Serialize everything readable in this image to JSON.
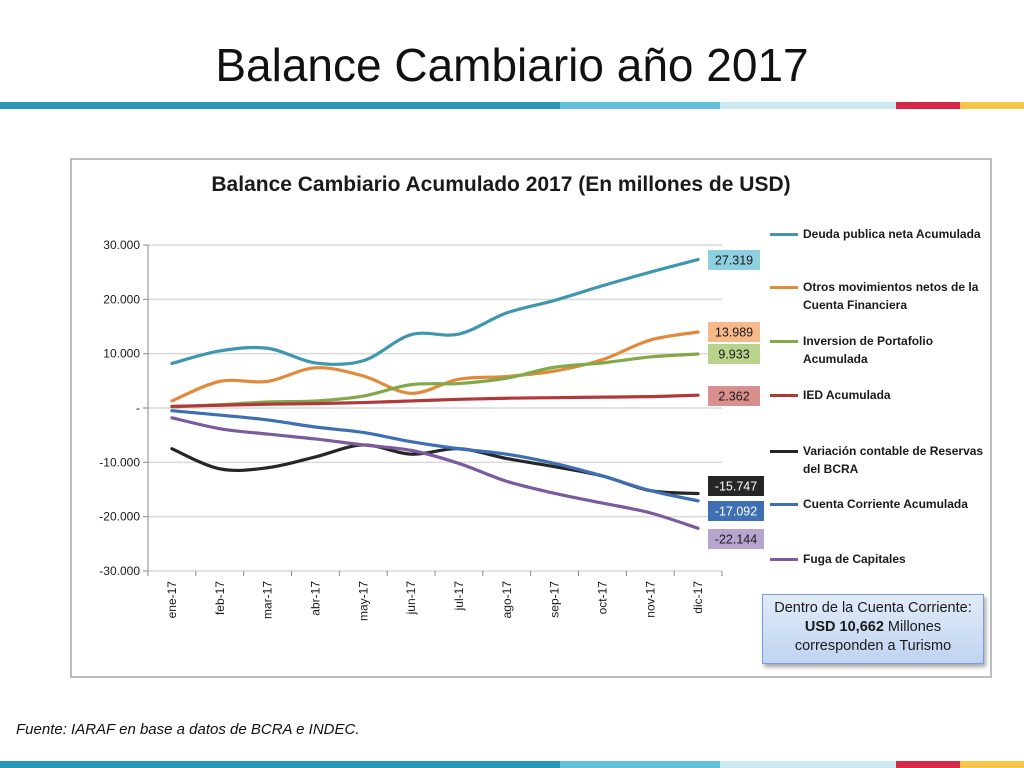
{
  "slide": {
    "title": "Balance Cambiario año 2017",
    "source": "Fuente: IARAF en base a datos de BCRA e INDEC."
  },
  "note": {
    "line1": "Dentro de la Cuenta Corriente:",
    "amount": "USD 10,662",
    "line2_rest": " Millones",
    "line3": "corresponden a Turismo"
  },
  "theme": {
    "bar_segments": [
      "#2a96b8",
      "#62c0da",
      "#cce9f2",
      "#d8284a",
      "#f7c548"
    ]
  },
  "chart_data": {
    "type": "line",
    "title": "Balance Cambiario Acumulado 2017 (En millones de USD)",
    "xlabel": "",
    "ylabel": "",
    "categories": [
      "ene-17",
      "feb-17",
      "mar-17",
      "abr-17",
      "may-17",
      "jun-17",
      "jul-17",
      "ago-17",
      "sep-17",
      "oct-17",
      "nov-17",
      "dic-17"
    ],
    "ylim": [
      -30000,
      30000
    ],
    "yticks": [
      30000,
      20000,
      10000,
      0,
      -10000,
      -20000,
      -30000
    ],
    "ytick_labels": [
      "30.000",
      "20.000",
      "10.000",
      "-",
      "-10.000",
      "-20.000",
      "-30.000"
    ],
    "grid": true,
    "legend_position": "right",
    "series": [
      {
        "name": "Deuda publica neta Acumulada",
        "color": "#3e97ae",
        "end_label": "27.319",
        "label_bg": "#8fcfe2",
        "label_color": "#1a1a1a",
        "values": [
          8200,
          10500,
          11000,
          8300,
          8700,
          13500,
          13600,
          17500,
          19800,
          22500,
          25000,
          27319
        ]
      },
      {
        "name": "Otros movimientos netos de la Cuenta Financiera",
        "color": "#e28a3b",
        "end_label": "13.989",
        "label_bg": "#f6b98a",
        "label_color": "#1a1a1a",
        "values": [
          1300,
          4900,
          4900,
          7400,
          5900,
          2700,
          5300,
          5800,
          6800,
          8900,
          12500,
          13989
        ]
      },
      {
        "name": "Inversion de Portafolio Acumulada",
        "color": "#83a84a",
        "end_label": "9.933",
        "label_bg": "#b9d48a",
        "label_color": "#1a1a1a",
        "values": [
          200,
          600,
          1100,
          1300,
          2200,
          4300,
          4500,
          5500,
          7500,
          8300,
          9400,
          9933
        ]
      },
      {
        "name": "IED Acumulada",
        "color": "#b2393a",
        "end_label": "2.362",
        "label_bg": "#d98f8e",
        "label_color": "#1a1a1a",
        "values": [
          300,
          500,
          700,
          800,
          1000,
          1300,
          1600,
          1800,
          1900,
          2000,
          2100,
          2362
        ]
      },
      {
        "name": "Variación contable de Reservas del BCRA",
        "color": "#262626",
        "end_label": "-15.747",
        "label_bg": "#262626",
        "label_color": "#ffffff",
        "values": [
          -7500,
          -11200,
          -11000,
          -9000,
          -6800,
          -8500,
          -7500,
          -9300,
          -10800,
          -12500,
          -15200,
          -15747
        ]
      },
      {
        "name": "Cuenta Corriente Acumulada",
        "color": "#3e6fb3",
        "end_label": "-17.092",
        "label_bg": "#3e6fb3",
        "label_color": "#ffffff",
        "values": [
          -500,
          -1300,
          -2200,
          -3500,
          -4500,
          -6200,
          -7500,
          -8500,
          -10200,
          -12500,
          -15200,
          -17092
        ]
      },
      {
        "name": "Fuga de Capitales",
        "color": "#7b5a9e",
        "end_label": "-22.144",
        "label_bg": "#b8a5cf",
        "label_color": "#1a1a1a",
        "values": [
          -1800,
          -3800,
          -4800,
          -5700,
          -6800,
          -7800,
          -10200,
          -13500,
          -15700,
          -17500,
          -19300,
          -22144
        ]
      }
    ]
  }
}
